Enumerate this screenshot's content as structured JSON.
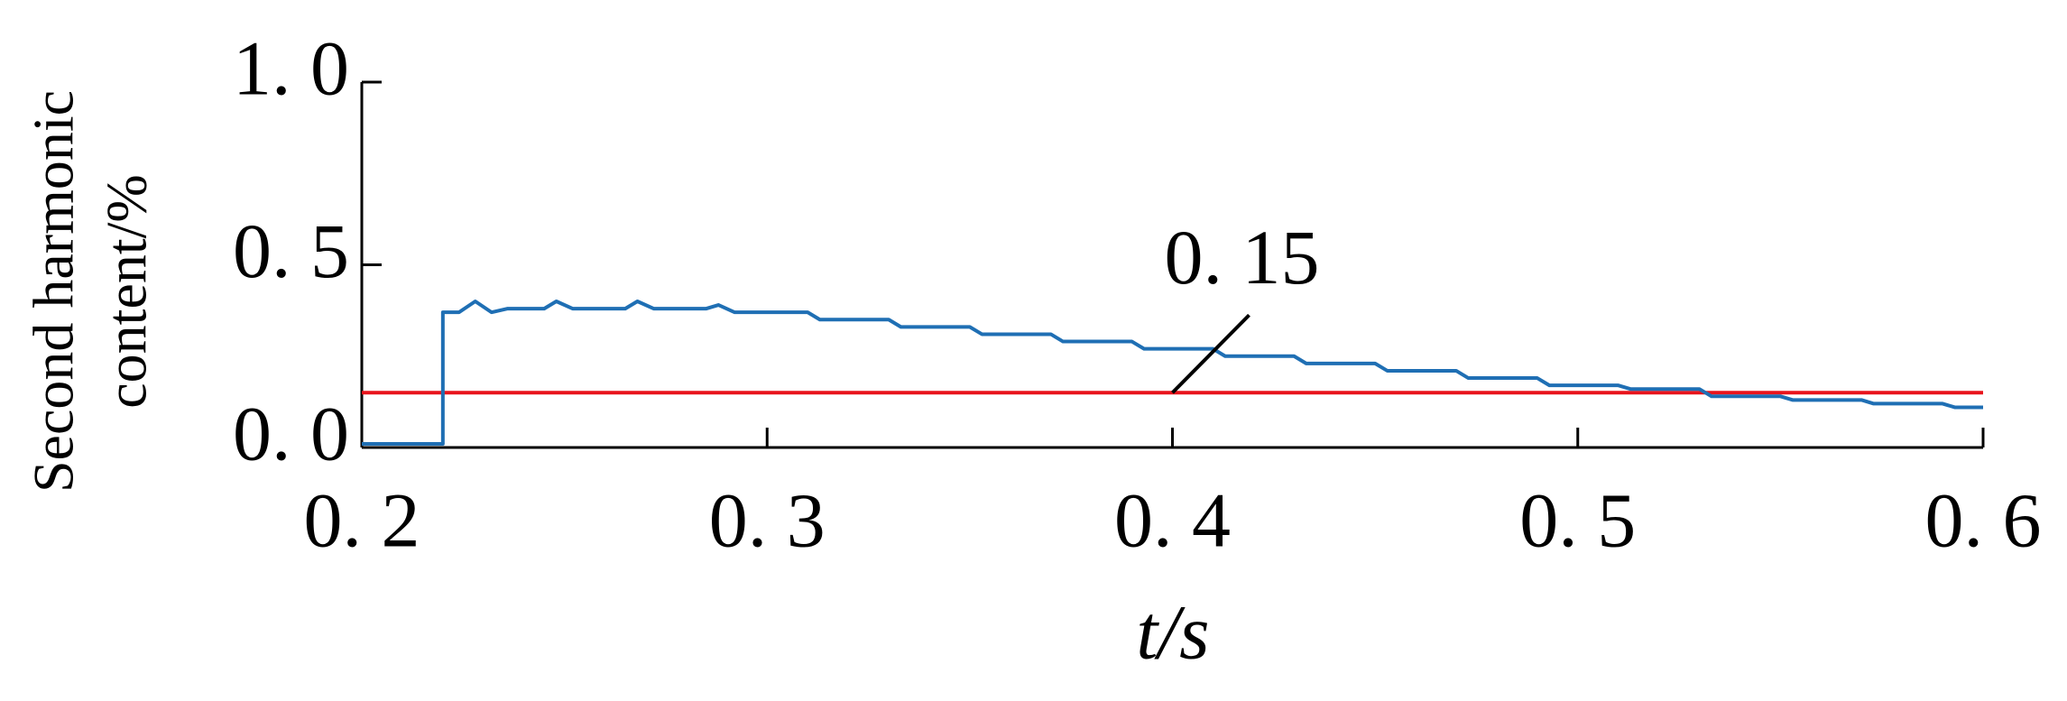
{
  "chart_data": {
    "type": "line",
    "x_label": "t/s",
    "y_label": [
      "Second harmonic",
      "content/%"
    ],
    "x": [
      0.2,
      0.22,
      0.22,
      0.224,
      0.228,
      0.232,
      0.236,
      0.245,
      0.248,
      0.252,
      0.265,
      0.268,
      0.272,
      0.285,
      0.288,
      0.292,
      0.31,
      0.313,
      0.33,
      0.333,
      0.35,
      0.353,
      0.37,
      0.373,
      0.39,
      0.393,
      0.41,
      0.413,
      0.43,
      0.433,
      0.45,
      0.453,
      0.47,
      0.473,
      0.49,
      0.493,
      0.51,
      0.513,
      0.53,
      0.533,
      0.55,
      0.553,
      0.57,
      0.573,
      0.59,
      0.593,
      0.6
    ],
    "series": [
      {
        "color": "#1f6fb4",
        "values": [
          0.01,
          0.01,
          0.37,
          0.37,
          0.4,
          0.37,
          0.38,
          0.38,
          0.4,
          0.38,
          0.38,
          0.4,
          0.38,
          0.38,
          0.39,
          0.37,
          0.37,
          0.35,
          0.35,
          0.33,
          0.33,
          0.31,
          0.31,
          0.29,
          0.29,
          0.27,
          0.27,
          0.25,
          0.25,
          0.23,
          0.23,
          0.21,
          0.21,
          0.19,
          0.19,
          0.17,
          0.17,
          0.16,
          0.16,
          0.14,
          0.14,
          0.13,
          0.13,
          0.12,
          0.12,
          0.11,
          0.11
        ]
      }
    ],
    "threshold": {
      "value": 0.15,
      "label": "0. 15",
      "color": "#e8141c"
    },
    "xlim": [
      0.2,
      0.6
    ],
    "ylim": [
      0,
      1
    ],
    "xticks": [
      {
        "value": 0.2,
        "label": "0. 2"
      },
      {
        "value": 0.3,
        "label": "0. 3"
      },
      {
        "value": 0.4,
        "label": "0. 4"
      },
      {
        "value": 0.5,
        "label": "0. 5"
      },
      {
        "value": 0.6,
        "label": "0. 6"
      }
    ],
    "yticks": [
      {
        "value": 0,
        "label": "0. 0"
      },
      {
        "value": 0.5,
        "label": "0. 5"
      },
      {
        "value": 1,
        "label": "1. 0"
      }
    ]
  }
}
